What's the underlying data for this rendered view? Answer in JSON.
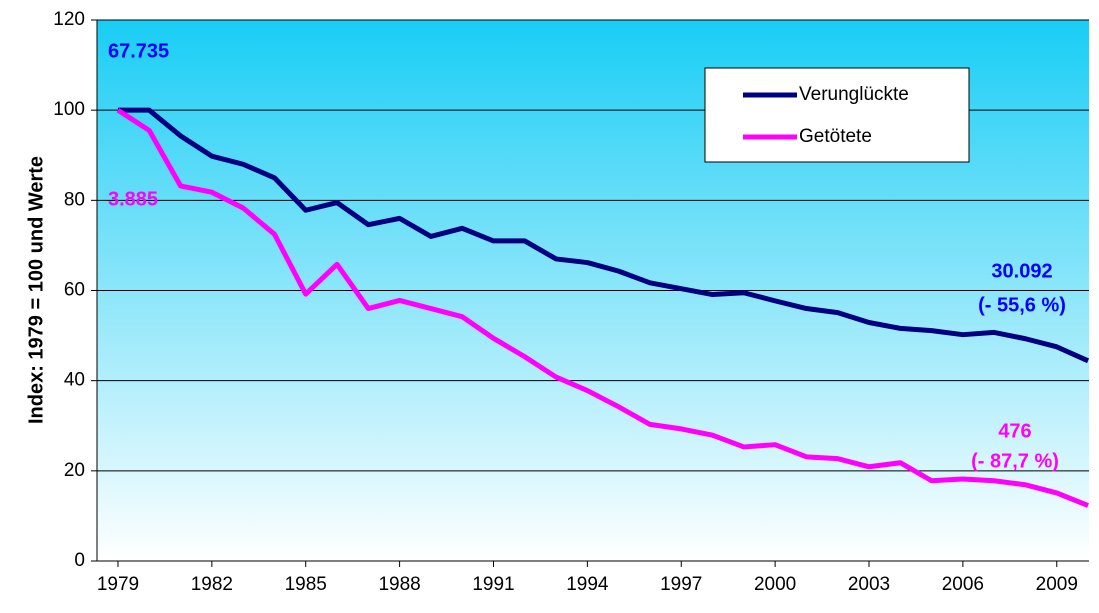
{
  "chart_data": {
    "type": "line",
    "y_label": "Index: 1979 = 100 und Werte",
    "x": [
      1979,
      1980,
      1981,
      1982,
      1983,
      1984,
      1985,
      1986,
      1987,
      1988,
      1989,
      1990,
      1991,
      1992,
      1993,
      1994,
      1995,
      1996,
      1997,
      1998,
      1999,
      2000,
      2001,
      2002,
      2003,
      2004,
      2005,
      2006,
      2007,
      2008,
      2009,
      2010
    ],
    "series": [
      {
        "name": "Verunglückte",
        "color": "#000080",
        "values": [
          100,
          100,
          94.3,
          89.8,
          88,
          85,
          77.8,
          79.5,
          74.6,
          76,
          72,
          73.8,
          71,
          71,
          67,
          66.2,
          64.3,
          61.7,
          60.4,
          59.1,
          59.5,
          57.7,
          56,
          55.1,
          52.9,
          51.6,
          51.1,
          50.2,
          50.7,
          49.3,
          47.5,
          44.4
        ]
      },
      {
        "name": "Getötete",
        "color": "#ff00ff",
        "values": [
          100,
          95.5,
          83.2,
          81.8,
          78.3,
          72.5,
          59.2,
          65.8,
          56,
          57.8,
          56,
          54.2,
          49.4,
          45.3,
          40.8,
          37.8,
          34.2,
          30.3,
          29.3,
          27.9,
          25.3,
          25.8,
          23.1,
          22.7,
          20.9,
          21.8,
          17.8,
          18.2,
          17.8,
          16.9,
          15.1,
          12.3
        ]
      }
    ],
    "annotations": [
      {
        "text": "67.735",
        "color": "#0000ff"
      },
      {
        "text": "3.885",
        "color": "#ff00ff"
      },
      {
        "text": "30.092",
        "color": "#0000ff"
      },
      {
        "text": "(- 55,6 %)",
        "color": "#0000ff"
      },
      {
        "text": "476",
        "color": "#ff00ff"
      },
      {
        "text": "(- 87,7 %)",
        "color": "#ff00ff"
      }
    ],
    "xlim": [
      1978.33,
      2010.03
    ],
    "xticks": [
      1979,
      1982,
      1985,
      1988,
      1991,
      1994,
      1997,
      2000,
      2003,
      2006,
      2009
    ],
    "ylim": [
      0,
      120
    ],
    "yticks": [
      0,
      20,
      40,
      60,
      80,
      100,
      120
    ],
    "grid": true,
    "legend": "top-right"
  }
}
